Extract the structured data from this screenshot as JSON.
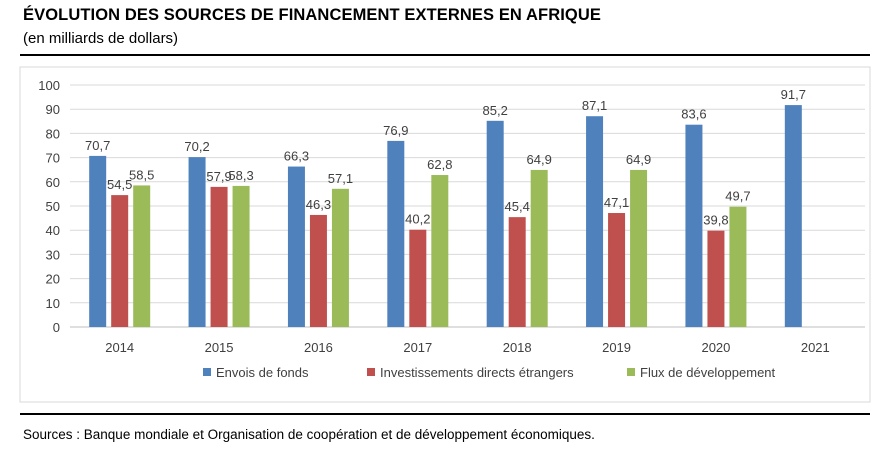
{
  "header": {
    "title": "ÉVOLUTION DES SOURCES DE FINANCEMENT EXTERNES EN AFRIQUE",
    "subtitle": "(en milliards de dollars)"
  },
  "footer": {
    "source": "Sources : Banque mondiale et Organisation de coopération et de développement économiques."
  },
  "chart_data": {
    "type": "bar",
    "title": "",
    "xlabel": "",
    "ylabel": "",
    "categories": [
      "2014",
      "2015",
      "2016",
      "2017",
      "2018",
      "2019",
      "2020",
      "2021"
    ],
    "ylim": [
      0,
      100
    ],
    "yticks": [
      0,
      10,
      20,
      30,
      40,
      50,
      60,
      70,
      80,
      90,
      100
    ],
    "grid": true,
    "legend_position": "bottom",
    "series": [
      {
        "name": "Envois de fonds",
        "color": "#4f81bd",
        "values": [
          70.7,
          70.2,
          66.3,
          76.9,
          85.2,
          87.1,
          83.6,
          91.7
        ],
        "labels": [
          "70,7",
          "70,2",
          "66,3",
          "76,9",
          "85,2",
          "87,1",
          "83,6",
          "91,7"
        ]
      },
      {
        "name": "Investissements directs étrangers",
        "color": "#c0504d",
        "values": [
          54.5,
          57.9,
          46.3,
          40.2,
          45.4,
          47.1,
          39.8,
          null
        ],
        "labels": [
          "54,5",
          "57,9",
          "46,3",
          "40,2",
          "45,4",
          "47,1",
          "39,8",
          null
        ]
      },
      {
        "name": "Flux de développement",
        "color": "#9bbb59",
        "values": [
          58.5,
          58.3,
          57.1,
          62.8,
          64.9,
          64.9,
          49.7,
          null
        ],
        "labels": [
          "58,5",
          "58,3",
          "57,1",
          "62,8",
          "64,9",
          "64,9",
          "49,7",
          null
        ]
      }
    ]
  }
}
